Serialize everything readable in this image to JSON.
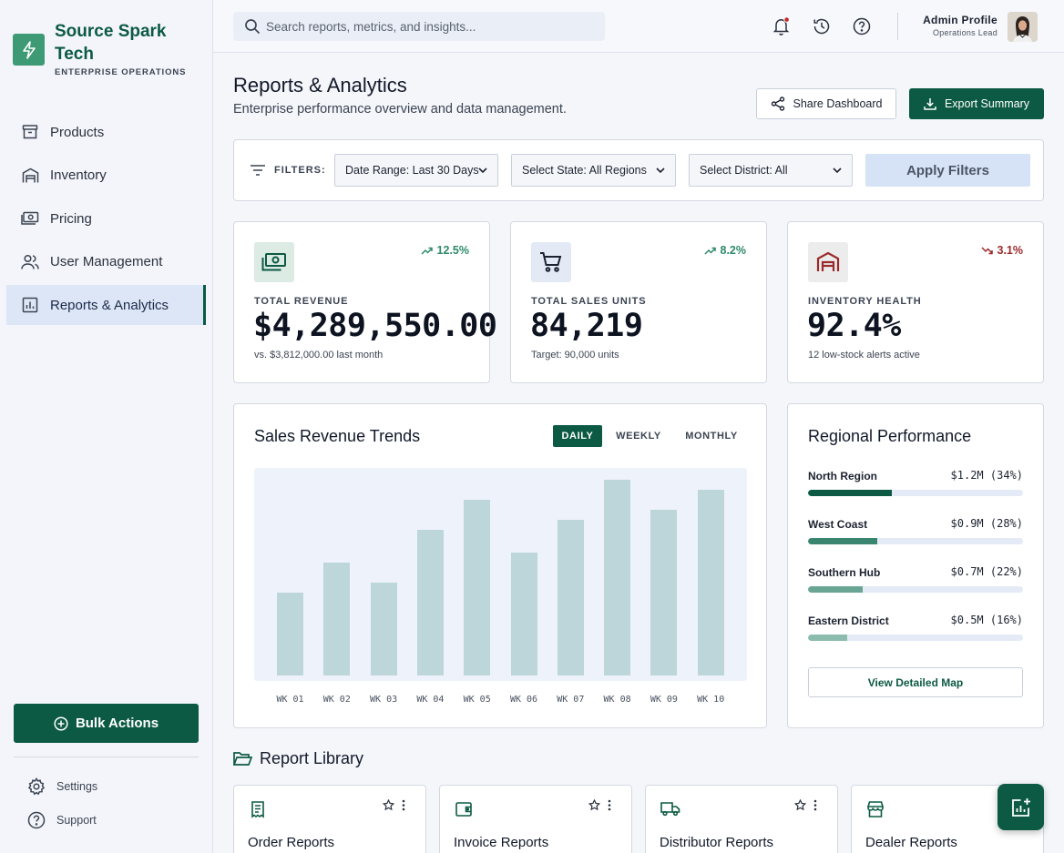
{
  "brand": {
    "name": "Source Spark Tech",
    "subtitle": "ENTERPRISE OPERATIONS"
  },
  "sidebar": {
    "items": [
      {
        "label": "Products",
        "icon": "archive-icon"
      },
      {
        "label": "Inventory",
        "icon": "warehouse-icon"
      },
      {
        "label": "Pricing",
        "icon": "cash-icon"
      },
      {
        "label": "User Management",
        "icon": "users-icon"
      },
      {
        "label": "Reports & Analytics",
        "icon": "analytics-icon",
        "active": true
      }
    ],
    "bulk_label": "Bulk Actions",
    "settings_label": "Settings",
    "support_label": "Support"
  },
  "header": {
    "search_placeholder": "Search reports, metrics, and insights...",
    "profile_name": "Admin Profile",
    "profile_role": "Operations Lead"
  },
  "page": {
    "title": "Reports & Analytics",
    "subtitle": "Enterprise performance overview and data management.",
    "share_label": "Share Dashboard",
    "export_label": "Export Summary"
  },
  "filters": {
    "label": "FILTERS:",
    "date_range": "Date Range: Last 30 Days",
    "state": "Select State: All Regions",
    "district": "Select District: All",
    "apply_label": "Apply Filters"
  },
  "kpis": [
    {
      "label": "TOTAL REVENUE",
      "value": "$4,289,550.00",
      "note": "vs. $3,812,000.00 last month",
      "change": "12.5%",
      "trend": "up",
      "icon": "cash-icon"
    },
    {
      "label": "TOTAL SALES UNITS",
      "value": "84,219",
      "note": "Target: 90,000 units",
      "change": "8.2%",
      "trend": "up",
      "icon": "cart-icon"
    },
    {
      "label": "INVENTORY HEALTH",
      "value": "92.4%",
      "note": "12 low-stock alerts active",
      "change": "3.1%",
      "trend": "down",
      "icon": "warehouse-icon"
    }
  ],
  "colors": {
    "primary": "#0c5a43",
    "up": "#2e8a6a",
    "down": "#9a2a2a",
    "bar": "#bdd6d9"
  },
  "trends": {
    "title": "Sales Revenue Trends",
    "tabs": [
      "DAILY",
      "WEEKLY",
      "MONTHLY"
    ],
    "active_tab": "DAILY"
  },
  "chart_data": {
    "type": "bar",
    "categories": [
      "WK 01",
      "WK 02",
      "WK 03",
      "WK 04",
      "WK 05",
      "WK 06",
      "WK 07",
      "WK 08",
      "WK 09",
      "WK 10"
    ],
    "values": [
      41,
      56,
      46,
      72,
      87,
      61,
      77,
      97,
      82,
      92
    ],
    "ylim": [
      0,
      100
    ],
    "grid": false
  },
  "regional": {
    "title": "Regional Performance",
    "regions": [
      {
        "name": "North Region",
        "value": "$1.2M (34%)",
        "pct": 34,
        "color": "#0c5a43"
      },
      {
        "name": "West Coast",
        "value": "$0.9M (28%)",
        "pct": 28,
        "color": "#3a8570"
      },
      {
        "name": "Southern Hub",
        "value": "$0.7M (22%)",
        "pct": 22,
        "color": "#68a592"
      },
      {
        "name": "Eastern District",
        "value": "$0.5M (16%)",
        "pct": 16,
        "color": "#8cbcae"
      }
    ],
    "map_label": "View Detailed Map"
  },
  "library": {
    "title": "Report Library",
    "cards": [
      {
        "title": "Order Reports",
        "icon": "receipt-icon"
      },
      {
        "title": "Invoice Reports",
        "icon": "wallet-icon"
      },
      {
        "title": "Distributor Reports",
        "icon": "truck-icon"
      },
      {
        "title": "Dealer Reports",
        "icon": "store-icon"
      }
    ]
  }
}
